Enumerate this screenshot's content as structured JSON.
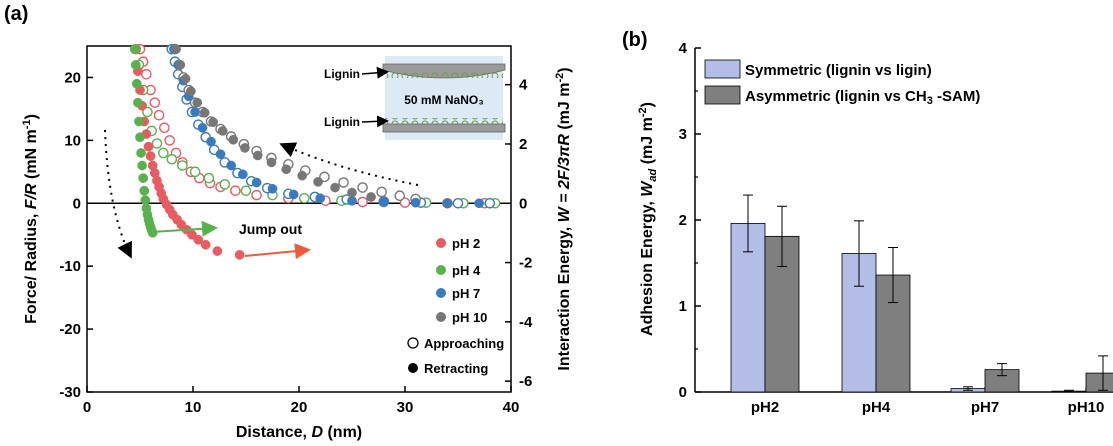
{
  "chart_data": [
    {
      "panel_label": "(a)",
      "type": "scatter",
      "xlabel": "Distance, D (nm)",
      "xlabel_parts": [
        "Distance, ",
        "D",
        " (nm)"
      ],
      "ylabel_parts": [
        "Force/ Radius, ",
        "F/R",
        " (mN m",
        "-1",
        ")"
      ],
      "y2label_parts": [
        "Interaction Energy, ",
        "W = 2F/3πR",
        " (mJ m",
        "-2",
        ")"
      ],
      "xlim": [
        0,
        40
      ],
      "ylim": [
        -30,
        25
      ],
      "y2lim": [
        -6.366,
        5.305
      ],
      "xticks": [
        0,
        10,
        20,
        30,
        40
      ],
      "yticks": [
        -30,
        -20,
        -10,
        0,
        10,
        20
      ],
      "y2ticks": [
        -6,
        -4,
        -2,
        0,
        2,
        4
      ],
      "legend": {
        "position": "bottom-right",
        "entries": [
          {
            "label": "pH 2",
            "color": "#e85c61",
            "marker": "filled"
          },
          {
            "label": "pH 4",
            "color": "#57b24c",
            "marker": "filled"
          },
          {
            "label": "pH 7",
            "color": "#3a7bbf",
            "marker": "filled"
          },
          {
            "label": "pH 10",
            "color": "#777777",
            "marker": "filled"
          },
          {
            "label": "Approaching",
            "color": "#000000",
            "marker": "open"
          },
          {
            "label": "Retracting",
            "color": "#000000",
            "marker": "filled"
          }
        ]
      },
      "annotations": {
        "jump_out": "Jump out",
        "inset": {
          "top_label": "Lignin",
          "bottom_label": "Lignin",
          "solution": "50 mM NaNO₃"
        }
      },
      "series": [
        {
          "ph": "pH 2",
          "mode": "approaching",
          "color": "#e85c61",
          "x": [
            5.0,
            5.3,
            5.6,
            6.0,
            6.4,
            6.8,
            7.3,
            7.8,
            8.4,
            9.0,
            9.8,
            10.6,
            11.6,
            12.6,
            14.0,
            16.0,
            19.0,
            22.5,
            26.0,
            30.0,
            34.0,
            37.5
          ],
          "y": [
            24.5,
            22.5,
            20.5,
            18.0,
            16.0,
            14.0,
            12.0,
            10.0,
            8.0,
            6.5,
            5.0,
            4.0,
            3.2,
            2.6,
            2.0,
            1.3,
            0.8,
            0.4,
            0.2,
            0.1,
            0.0,
            0.0
          ]
        },
        {
          "ph": "pH 4",
          "mode": "approaching",
          "color": "#57b24c",
          "x": [
            4.6,
            4.9,
            5.3,
            5.7,
            6.1,
            6.6,
            7.2,
            8.0,
            9.0,
            10.2,
            11.5,
            13.0,
            15.0,
            17.5,
            20.5,
            24.0,
            28.0,
            32.0,
            35.5,
            38.5
          ],
          "y": [
            24.5,
            22.0,
            18.0,
            14.5,
            11.5,
            9.5,
            8.0,
            7.0,
            6.0,
            5.0,
            4.0,
            3.0,
            2.0,
            1.3,
            0.8,
            0.4,
            0.2,
            0.1,
            0.0,
            0.0
          ]
        },
        {
          "ph": "pH 7",
          "mode": "approaching",
          "color": "#3a7bbf",
          "x": [
            8.0,
            8.3,
            8.6,
            9.0,
            9.4,
            9.9,
            10.5,
            11.2,
            12.0,
            13.0,
            14.2,
            15.5,
            17.0,
            19.0,
            21.5,
            24.5,
            28.0,
            31.5,
            35.0,
            38.0
          ],
          "y": [
            24.5,
            22.5,
            20.5,
            18.5,
            16.5,
            14.5,
            12.5,
            10.5,
            8.5,
            6.5,
            4.8,
            3.5,
            2.4,
            1.5,
            1.0,
            0.6,
            0.3,
            0.1,
            0.0,
            0.0
          ]
        },
        {
          "ph": "pH 10",
          "mode": "approaching",
          "color": "#777777",
          "x": [
            8.3,
            8.7,
            9.1,
            9.6,
            10.2,
            10.9,
            11.7,
            12.6,
            13.6,
            14.8,
            16.0,
            17.4,
            19.0,
            20.6,
            22.4,
            24.2,
            26.0,
            27.8,
            29.5,
            31.0
          ],
          "y": [
            24.5,
            22.0,
            20.0,
            18.0,
            16.0,
            14.5,
            13.0,
            11.8,
            10.6,
            9.4,
            8.3,
            7.2,
            6.2,
            5.2,
            4.2,
            3.3,
            2.5,
            1.8,
            1.2,
            0.7
          ]
        },
        {
          "ph": "pH 2",
          "mode": "retracting",
          "color": "#e85c61",
          "x": [
            4.6,
            4.8,
            5.0,
            5.2,
            5.4,
            5.6,
            5.8,
            6.0,
            6.2,
            6.4,
            6.6,
            6.8,
            7.0,
            7.2,
            7.5,
            7.8,
            8.1,
            8.5,
            8.9,
            9.4,
            9.9,
            10.5,
            11.2,
            12.3,
            14.4
          ],
          "y": [
            24.5,
            21.0,
            18.0,
            15.5,
            13.0,
            11.0,
            9.0,
            7.5,
            6.0,
            4.8,
            3.6,
            2.6,
            1.6,
            0.7,
            -0.2,
            -1.0,
            -1.8,
            -2.6,
            -3.4,
            -4.2,
            -5.0,
            -5.8,
            -6.6,
            -7.6,
            -8.2
          ]
        },
        {
          "ph": "pH 4",
          "mode": "retracting",
          "color": "#57b24c",
          "x": [
            4.5,
            4.6,
            4.7,
            4.8,
            4.9,
            5.0,
            5.1,
            5.2,
            5.3,
            5.4,
            5.5,
            5.6,
            5.7,
            5.8,
            5.9,
            6.0,
            6.1,
            6.2
          ],
          "y": [
            24.5,
            22.0,
            19.0,
            16.0,
            13.0,
            10.5,
            8.0,
            6.0,
            4.0,
            2.0,
            0.5,
            -0.8,
            -1.8,
            -2.6,
            -3.2,
            -3.8,
            -4.3,
            -4.7
          ]
        },
        {
          "ph": "pH 7",
          "mode": "retracting",
          "color": "#3a7bbf",
          "x": [
            8.2,
            8.6,
            9.1,
            9.6,
            10.2,
            10.9,
            11.7,
            12.6,
            13.6,
            14.7,
            16.0,
            17.5,
            19.5,
            22.0,
            25.0,
            28.0,
            31.0,
            34.0,
            37.0
          ],
          "y": [
            24.5,
            22.0,
            19.5,
            17.0,
            14.5,
            12.0,
            9.8,
            7.8,
            6.0,
            4.6,
            3.3,
            2.3,
            1.4,
            0.8,
            0.4,
            0.2,
            0.1,
            0.0,
            0.0
          ]
        },
        {
          "ph": "pH 10",
          "mode": "retracting",
          "color": "#777777",
          "x": [
            8.4,
            8.8,
            9.3,
            9.8,
            10.4,
            11.1,
            11.9,
            12.8,
            13.8,
            14.9,
            16.1,
            17.4,
            18.8,
            20.3,
            21.8,
            23.4,
            25.0,
            26.8
          ],
          "y": [
            24.5,
            22.0,
            19.8,
            17.8,
            16.0,
            14.4,
            12.9,
            11.5,
            10.1,
            8.8,
            7.6,
            6.5,
            5.4,
            4.4,
            3.4,
            2.5,
            1.7,
            1.0
          ]
        }
      ]
    },
    {
      "panel_label": "(b)",
      "type": "bar",
      "categories": [
        "pH2",
        "pH4",
        "pH7",
        "pH10"
      ],
      "ylabel_parts": [
        "Adhesion Energy, ",
        "W",
        "ad",
        " (mJ m",
        "-2",
        ")"
      ],
      "ylim": [
        0,
        4
      ],
      "yticks": [
        0,
        1,
        2,
        3,
        4
      ],
      "legend": {
        "position": "top-left"
      },
      "series": [
        {
          "name_parts": [
            "Symmetric  (lignin vs ligin)"
          ],
          "color": "#b3bde6",
          "values": [
            1.96,
            1.61,
            0.04,
            0.01
          ],
          "errors": [
            0.33,
            0.38,
            0.02,
            0.01
          ]
        },
        {
          "name_parts": [
            "Asymmetric (lignin vs CH",
            "3",
            " -SAM)"
          ],
          "color": "#7f7f7f",
          "values": [
            1.81,
            1.36,
            0.26,
            0.22
          ],
          "errors": [
            0.35,
            0.32,
            0.07,
            0.2
          ]
        }
      ]
    }
  ]
}
